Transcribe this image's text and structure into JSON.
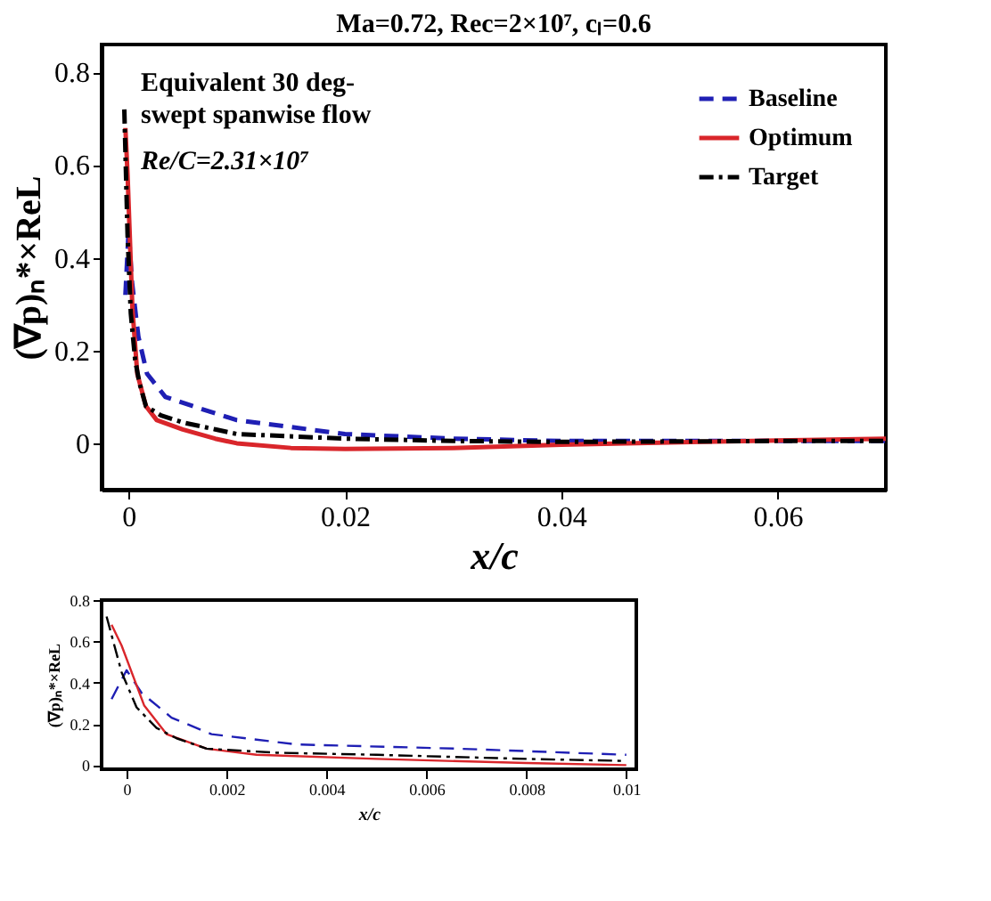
{
  "chart_data": [
    {
      "type": "line",
      "title": "Ma=0.72, Rec=2×10⁷, cₗ=0.6",
      "xlabel": "x/c",
      "ylabel": "(∇p)ₙ*×ReL",
      "annotations": [
        "Equivalent 30 deg-",
        "swept spanwise flow",
        "Re/C=2.31×10⁷"
      ],
      "xlim": [
        -0.0025,
        0.07
      ],
      "xticks": [
        0,
        0.02,
        0.04,
        0.06
      ],
      "ylim": [
        -0.1,
        0.86
      ],
      "yticks": [
        0,
        0.2,
        0.4,
        0.6,
        0.8
      ],
      "grid": false,
      "legend": "top right",
      "series": [
        {
          "name": "Baseline",
          "color": "#1f1fb4",
          "line_style": "dashed",
          "x": [
            -0.0003,
            0,
            0.0003,
            0.0009,
            0.0017,
            0.0034,
            0.0066,
            0.01,
            0.015,
            0.02,
            0.03,
            0.04,
            0.05,
            0.06,
            0.07
          ],
          "values": [
            0.32,
            0.46,
            0.35,
            0.23,
            0.15,
            0.1,
            0.075,
            0.05,
            0.035,
            0.02,
            0.01,
            0.005,
            0.005,
            0.005,
            0.005
          ]
        },
        {
          "name": "Optimum",
          "color": "#d9262b",
          "line_style": "solid",
          "x": [
            -0.0003,
            -0.0001,
            0.00035,
            0.0008,
            0.0016,
            0.0026,
            0.005,
            0.008,
            0.01,
            0.015,
            0.02,
            0.03,
            0.04,
            0.05,
            0.06,
            0.07
          ],
          "values": [
            0.68,
            0.58,
            0.29,
            0.15,
            0.08,
            0.05,
            0.03,
            0.01,
            0.0,
            -0.01,
            -0.012,
            -0.01,
            -0.003,
            0.002,
            0.006,
            0.01
          ]
        },
        {
          "name": "Target",
          "color": "#000000",
          "line_style": "dashdot",
          "x": [
            -0.0004,
            -0.0001,
            0.0002,
            0.0006,
            0.001,
            0.0016,
            0.003,
            0.005,
            0.008,
            0.01,
            0.02,
            0.03,
            0.04,
            0.05,
            0.06,
            0.07
          ],
          "values": [
            0.72,
            0.45,
            0.28,
            0.18,
            0.13,
            0.08,
            0.06,
            0.045,
            0.03,
            0.02,
            0.01,
            0.005,
            0.003,
            0.004,
            0.005,
            0.005
          ]
        }
      ]
    },
    {
      "type": "line",
      "xlabel": "x/c",
      "ylabel": "(∇p)ₙ*×ReL",
      "xlim": [
        -0.0005,
        0.0102
      ],
      "xticks": [
        0,
        0.002,
        0.004,
        0.006,
        0.008,
        0.01
      ],
      "ylim": [
        -0.02,
        0.8
      ],
      "yticks": [
        0,
        0.2,
        0.4,
        0.6,
        0.8
      ],
      "grid": false,
      "series": [
        {
          "color": "#1f1fb4",
          "line_style": "dashed",
          "x": [
            -0.0003,
            0,
            0.0003,
            0.0009,
            0.0017,
            0.0034,
            0.0066,
            0.01
          ],
          "values": [
            0.32,
            0.46,
            0.35,
            0.23,
            0.15,
            0.1,
            0.08,
            0.05
          ]
        },
        {
          "color": "#d9262b",
          "line_style": "solid",
          "x": [
            -0.0003,
            -0.0001,
            0.00035,
            0.0008,
            0.0016,
            0.0026,
            0.005,
            0.008,
            0.01
          ],
          "values": [
            0.68,
            0.58,
            0.29,
            0.15,
            0.08,
            0.05,
            0.03,
            0.01,
            0.0
          ]
        },
        {
          "color": "#000000",
          "line_style": "dashdot",
          "x": [
            -0.0004,
            -0.0001,
            0.0002,
            0.0006,
            0.001,
            0.0016,
            0.003,
            0.005,
            0.008,
            0.01
          ],
          "values": [
            0.72,
            0.45,
            0.28,
            0.18,
            0.13,
            0.08,
            0.06,
            0.05,
            0.03,
            0.02
          ]
        }
      ]
    }
  ]
}
